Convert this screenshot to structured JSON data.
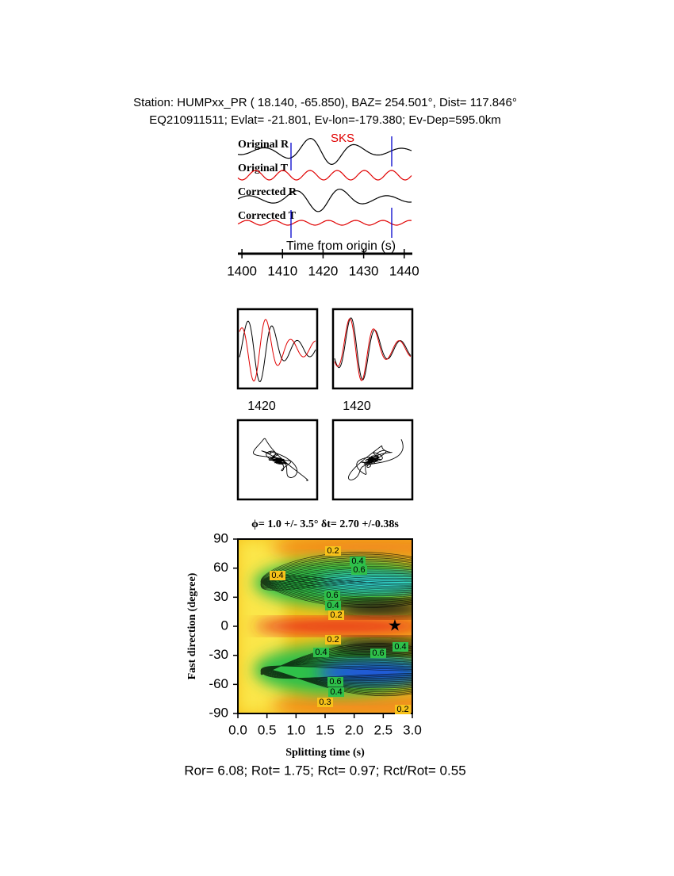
{
  "header": {
    "station_line": "Station: HUMPxx_PR (  18.140,  -65.850), BAZ=  254.501°, Dist=  117.846°",
    "event_line": "EQ210911511; Evlat= -21.801, Ev-lon=-179.380; Ev-Dep=595.0km"
  },
  "waveforms": {
    "phase": "SKS",
    "trace_labels": [
      "Original R",
      "Original T",
      "Corrected R",
      "Corrected T"
    ],
    "xlabel": "Time from origin (s)",
    "xlim": [
      1399,
      1442
    ],
    "xticks": [
      1400,
      1410,
      1420,
      1430,
      1440
    ]
  },
  "particle_motion": {
    "tick_labels": [
      "1420",
      "1420"
    ]
  },
  "contour": {
    "title": "ϕ= 1.0 +/- 3.5° δt= 2.70 +/-0.38s",
    "xlabel": "Splitting time (s)",
    "ylabel": "Fast direction (degree)",
    "xlim": [
      0,
      3
    ],
    "ylim": [
      -90,
      90
    ],
    "xticks": [
      {
        "value": 0,
        "label": "0.0"
      },
      {
        "value": 0.5,
        "label": "0.5"
      },
      {
        "value": 1,
        "label": "1.0"
      },
      {
        "value": 1.5,
        "label": "1.5"
      },
      {
        "value": 2,
        "label": "2.0"
      },
      {
        "value": 2.5,
        "label": "2.5"
      },
      {
        "value": 3,
        "label": "3.0"
      }
    ],
    "yticks": [
      -90,
      -60,
      -30,
      0,
      30,
      60,
      90
    ],
    "contour_labels": [
      "0.2",
      "0.4",
      "0.6",
      "0.4",
      "0.6",
      "0.4",
      "0.2",
      "0.2",
      "0.4",
      "0.6",
      "0.4",
      "0.6",
      "0.3",
      "0.2",
      "0.4"
    ]
  },
  "footer": "Ror= 6.08; Rot= 1.75; Rct= 0.97; Rct/Rot= 0.55"
}
